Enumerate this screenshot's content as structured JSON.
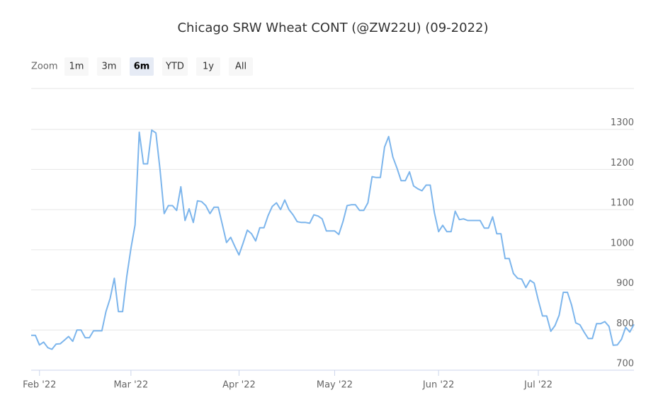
{
  "chart_data": {
    "type": "line",
    "title": "Chicago SRW Wheat CONT (@ZW22U) (09-2022)",
    "range_selector": {
      "label": "Zoom",
      "buttons": [
        "1m",
        "3m",
        "6m",
        "YTD",
        "1y",
        "All"
      ],
      "selected": 2
    },
    "categories": [
      null,
      null,
      "Feb '22",
      null,
      null,
      null,
      null,
      null,
      null,
      null,
      null,
      null,
      null,
      null,
      null,
      null,
      null,
      null,
      null,
      null,
      null,
      null,
      null,
      null,
      "Mar '22",
      null,
      null,
      null,
      null,
      null,
      null,
      null,
      null,
      null,
      null,
      null,
      null,
      null,
      null,
      null,
      null,
      null,
      null,
      null,
      null,
      null,
      null,
      null,
      null,
      null,
      "Apr '22",
      null,
      null,
      null,
      null,
      null,
      null,
      null,
      null,
      null,
      null,
      null,
      null,
      null,
      null,
      null,
      null,
      null,
      null,
      null,
      null,
      null,
      null,
      "May '22",
      null,
      null,
      null,
      null,
      null,
      null,
      null,
      null,
      null,
      null,
      null,
      null,
      null,
      null,
      null,
      null,
      null,
      null,
      null,
      null,
      null,
      null,
      null,
      null,
      "Jun '22",
      null,
      null,
      null,
      null,
      null,
      null,
      null,
      null,
      null,
      null,
      null,
      null,
      null,
      null,
      null,
      null,
      null,
      null,
      null,
      null,
      null,
      null,
      null,
      "Jul '22",
      null,
      null,
      null,
      null,
      null,
      null,
      null,
      null,
      null,
      null,
      null,
      null,
      null,
      null,
      null,
      null,
      null,
      null,
      null,
      null,
      null,
      null,
      null
    ],
    "series": [
      {
        "name": "Chicago SRW Wheat CONT (@ZW22U) (09-2022)",
        "color": "#7cb5ec",
        "values": [
          787,
          787,
          763,
          770,
          756,
          752,
          765,
          766,
          775,
          784,
          772,
          800,
          800,
          781,
          781,
          798,
          798,
          798,
          846,
          879,
          929,
          846,
          846,
          934,
          1004,
          1062,
          1293,
          1214,
          1214,
          1298,
          1291,
          1200,
          1090,
          1110,
          1110,
          1098,
          1157,
          1073,
          1102,
          1068,
          1122,
          1120,
          1110,
          1090,
          1106,
          1106,
          1062,
          1018,
          1031,
          1008,
          987,
          1017,
          1049,
          1040,
          1022,
          1055,
          1055,
          1085,
          1108,
          1117,
          1100,
          1124,
          1100,
          1087,
          1070,
          1068,
          1068,
          1066,
          1087,
          1084,
          1077,
          1047,
          1047,
          1047,
          1038,
          1070,
          1110,
          1112,
          1112,
          1098,
          1098,
          1117,
          1182,
          1180,
          1180,
          1256,
          1282,
          1231,
          1203,
          1172,
          1172,
          1194,
          1159,
          1152,
          1147,
          1161,
          1161,
          1092,
          1045,
          1061,
          1045,
          1045,
          1096,
          1075,
          1077,
          1073,
          1073,
          1073,
          1073,
          1054,
          1054,
          1082,
          1040,
          1040,
          978,
          978,
          941,
          929,
          927,
          906,
          924,
          917,
          874,
          835,
          835,
          797,
          811,
          837,
          894,
          894,
          862,
          818,
          813,
          795,
          779,
          779,
          816,
          816,
          821,
          809,
          762,
          763,
          777,
          807,
          795,
          814
        ]
      }
    ],
    "ylim": [
      700,
      1400
    ],
    "yticks": [
      700,
      800,
      900,
      1000,
      1100,
      1200,
      1300
    ],
    "grid": true
  }
}
